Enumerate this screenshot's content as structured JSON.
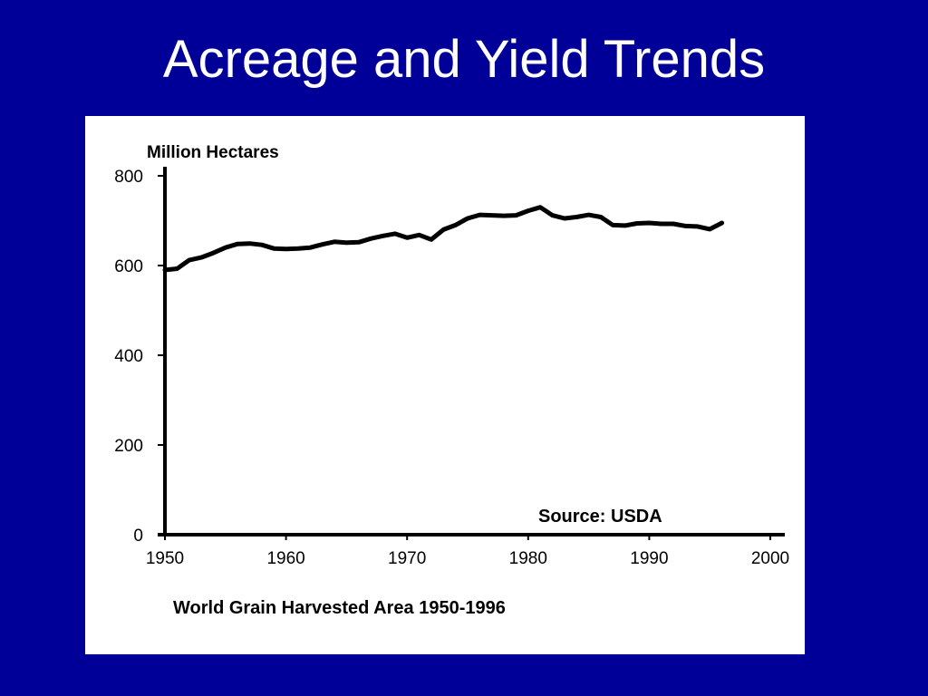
{
  "slide": {
    "title": "Acreage and Yield Trends",
    "background_color": "#000099",
    "title_color": "#ffffff"
  },
  "chart_data": {
    "type": "line",
    "title": "",
    "ylabel": "Million Hectares",
    "xlabel": "",
    "caption": "World Grain Harvested Area 1950-1996",
    "annotation": "Source: USDA",
    "xlim": [
      1950,
      2000
    ],
    "ylim": [
      0,
      800
    ],
    "x_ticks": [
      1950,
      1960,
      1970,
      1980,
      1990,
      2000
    ],
    "x_tick_labels": [
      "1950",
      "1960",
      "1970",
      "1980",
      "1990",
      "2000"
    ],
    "y_ticks": [
      0,
      200,
      400,
      600,
      800
    ],
    "y_tick_labels": [
      "0",
      "200",
      "400",
      "600",
      "800"
    ],
    "grid": false,
    "series": [
      {
        "x": [
          1950,
          1951,
          1952,
          1953,
          1954,
          1955,
          1956,
          1957,
          1958,
          1959,
          1960,
          1961,
          1962,
          1963,
          1964,
          1965,
          1966,
          1967,
          1968,
          1969,
          1970,
          1971,
          1972,
          1973,
          1974,
          1975,
          1976,
          1977,
          1978,
          1979,
          1980,
          1981,
          1982,
          1983,
          1984,
          1985,
          1986,
          1987,
          1988,
          1989,
          1990,
          1991,
          1992,
          1993,
          1994,
          1995,
          1996
        ],
        "values": [
          590,
          593,
          612,
          618,
          628,
          640,
          648,
          649,
          646,
          638,
          637,
          638,
          640,
          647,
          653,
          651,
          652,
          660,
          666,
          671,
          662,
          668,
          658,
          680,
          690,
          705,
          713,
          712,
          711,
          712,
          722,
          730,
          712,
          705,
          708,
          713,
          708,
          690,
          689,
          694,
          695,
          693,
          693,
          688,
          687,
          681,
          695
        ]
      }
    ]
  }
}
